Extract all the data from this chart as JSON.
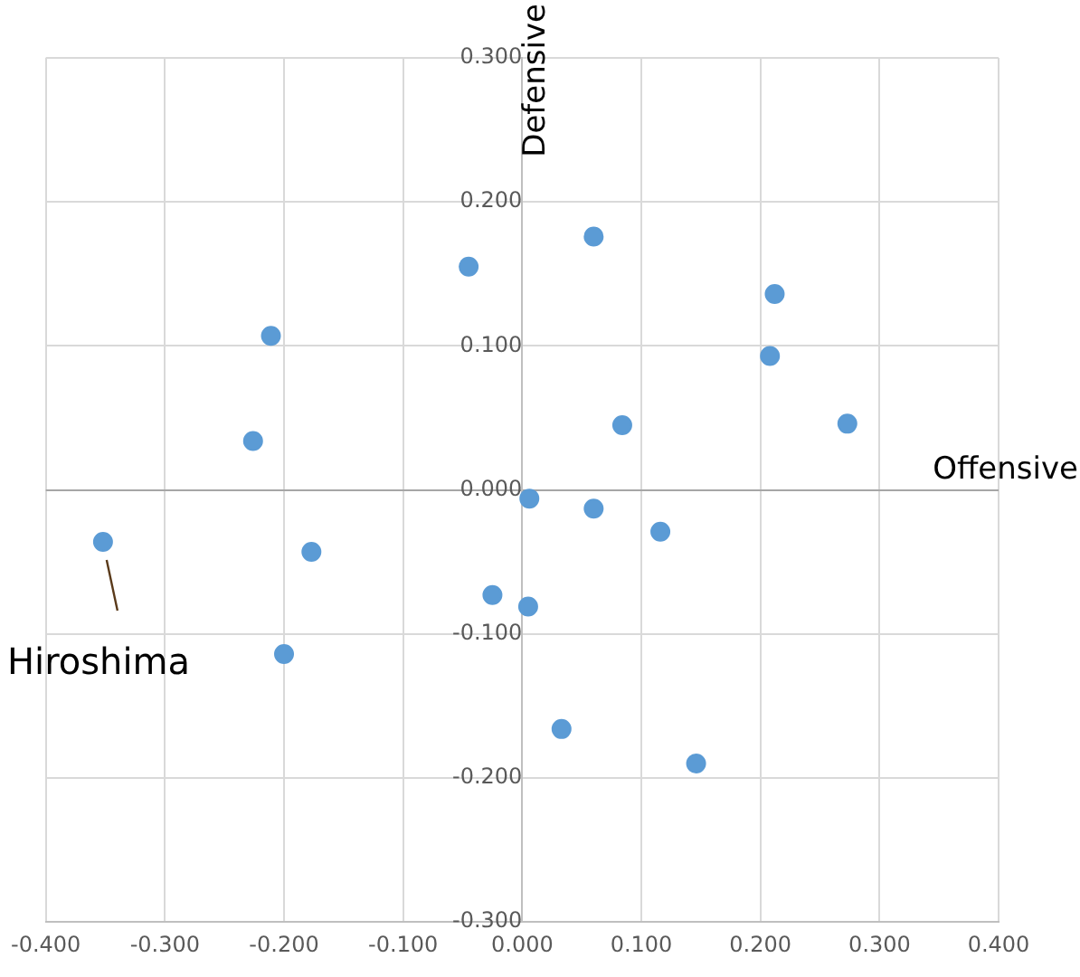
{
  "chart_data": {
    "type": "scatter",
    "xlabel": "Offensive",
    "ylabel": "Defensive",
    "x": [
      -0.352,
      -0.211,
      -0.226,
      -0.177,
      -0.2,
      -0.045,
      0.06,
      0.212,
      0.208,
      0.273,
      0.084,
      0.006,
      0.06,
      0.116,
      -0.025,
      0.005,
      0.033,
      0.146
    ],
    "series": [
      {
        "color": "#5b9bd5",
        "values": [
          -0.036,
          0.107,
          0.034,
          -0.043,
          -0.114,
          0.155,
          0.176,
          0.136,
          0.093,
          0.046,
          0.045,
          -0.006,
          -0.013,
          -0.029,
          -0.073,
          -0.081,
          -0.166,
          -0.19
        ]
      }
    ],
    "xlim": [
      -0.4,
      0.4
    ],
    "ylim": [
      -0.3,
      0.3
    ],
    "xticks": [
      {
        "value": -0.4,
        "label": "-0.400"
      },
      {
        "value": -0.3,
        "label": "-0.300"
      },
      {
        "value": -0.2,
        "label": "-0.200"
      },
      {
        "value": -0.1,
        "label": "-0.100"
      },
      {
        "value": 0,
        "label": "0.000"
      },
      {
        "value": 0.1,
        "label": "0.100"
      },
      {
        "value": 0.2,
        "label": "0.200"
      },
      {
        "value": 0.3,
        "label": "0.300"
      },
      {
        "value": 0.4,
        "label": "0.400"
      }
    ],
    "yticks": [
      {
        "value": -0.3,
        "label": "-0.300"
      },
      {
        "value": -0.2,
        "label": "-0.200"
      },
      {
        "value": -0.1,
        "label": "-0.100"
      },
      {
        "value": 0,
        "label": "0.000"
      },
      {
        "value": 0.1,
        "label": "0.100"
      },
      {
        "value": 0.2,
        "label": "0.200"
      },
      {
        "value": 0.3,
        "label": "0.300"
      }
    ],
    "grid": true,
    "marker": "circle",
    "annotations": [
      {
        "text": "Hiroshima",
        "x": -0.352,
        "y": -0.036
      }
    ]
  }
}
